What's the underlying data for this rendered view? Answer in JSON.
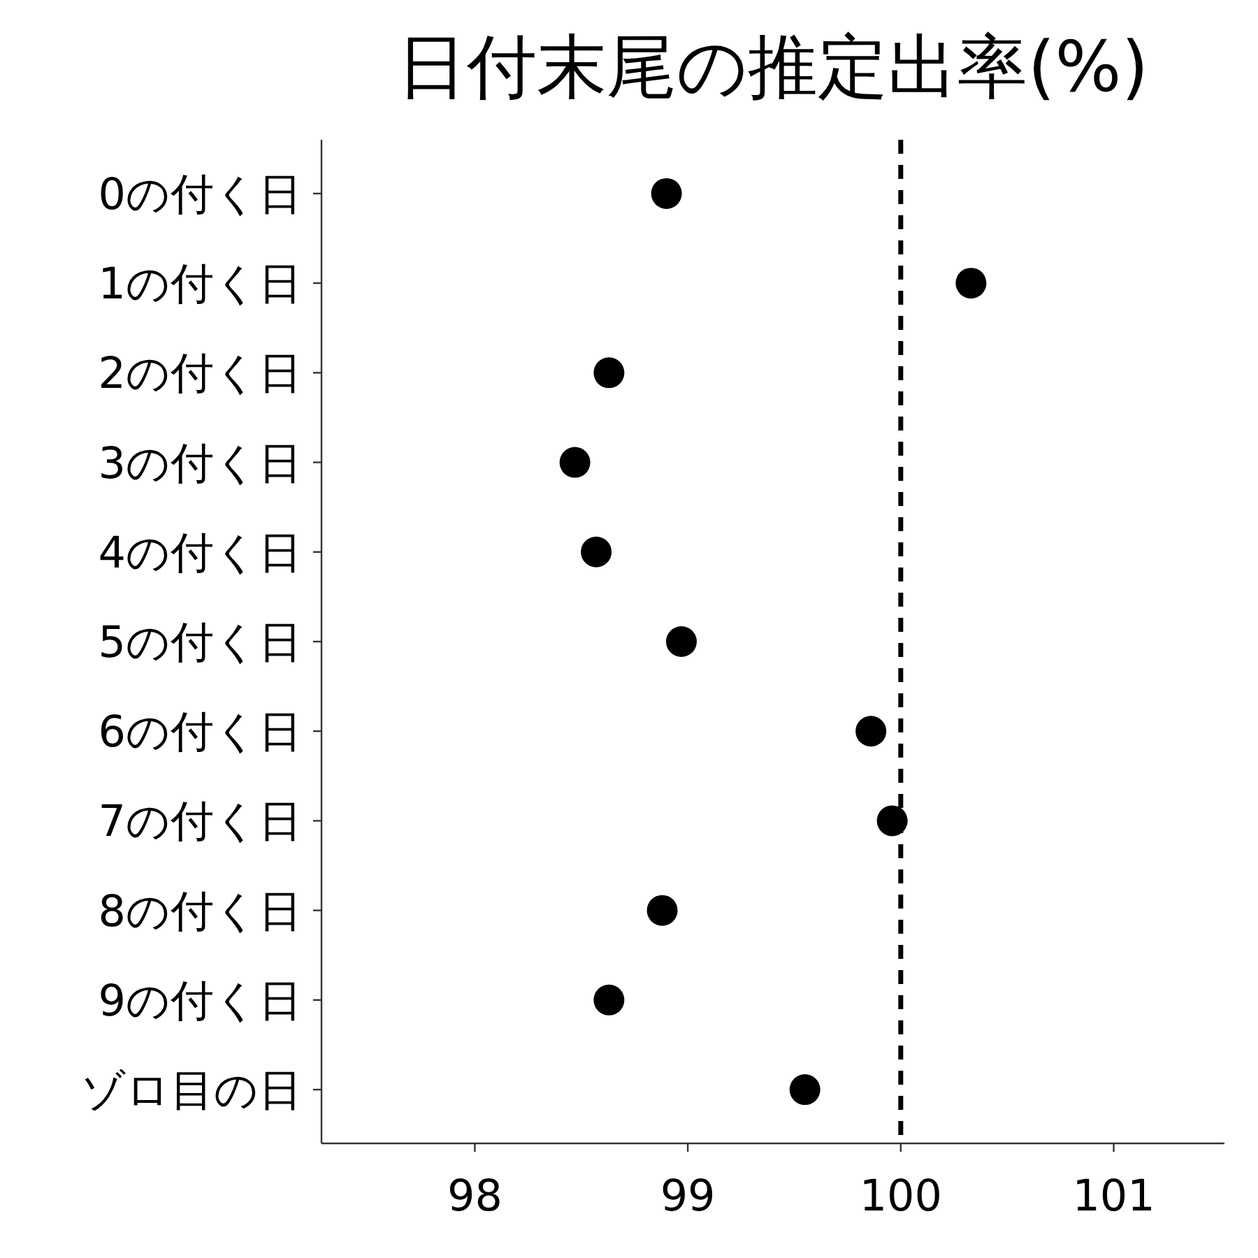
{
  "chart_data": {
    "type": "scatter",
    "title": "日付末尾の推定出率(%)",
    "categories": [
      "0の付く日",
      "1の付く日",
      "2の付く日",
      "3の付く日",
      "4の付く日",
      "5の付く日",
      "6の付く日",
      "7の付く日",
      "8の付く日",
      "9の付く日",
      "ゾロ目の日"
    ],
    "values": [
      98.9,
      100.33,
      98.63,
      98.47,
      98.57,
      98.97,
      99.86,
      99.96,
      98.88,
      98.63,
      99.55
    ],
    "color": "#000000",
    "orientation": "horizontal",
    "marker": "circle",
    "xlim": [
      97.28,
      101.52
    ],
    "xticks": [
      98,
      99,
      100,
      101
    ],
    "ref_lines": [
      {
        "axis": "x",
        "value": 100,
        "color": "#000000",
        "line_style": "dashed"
      }
    ],
    "grid": false
  }
}
